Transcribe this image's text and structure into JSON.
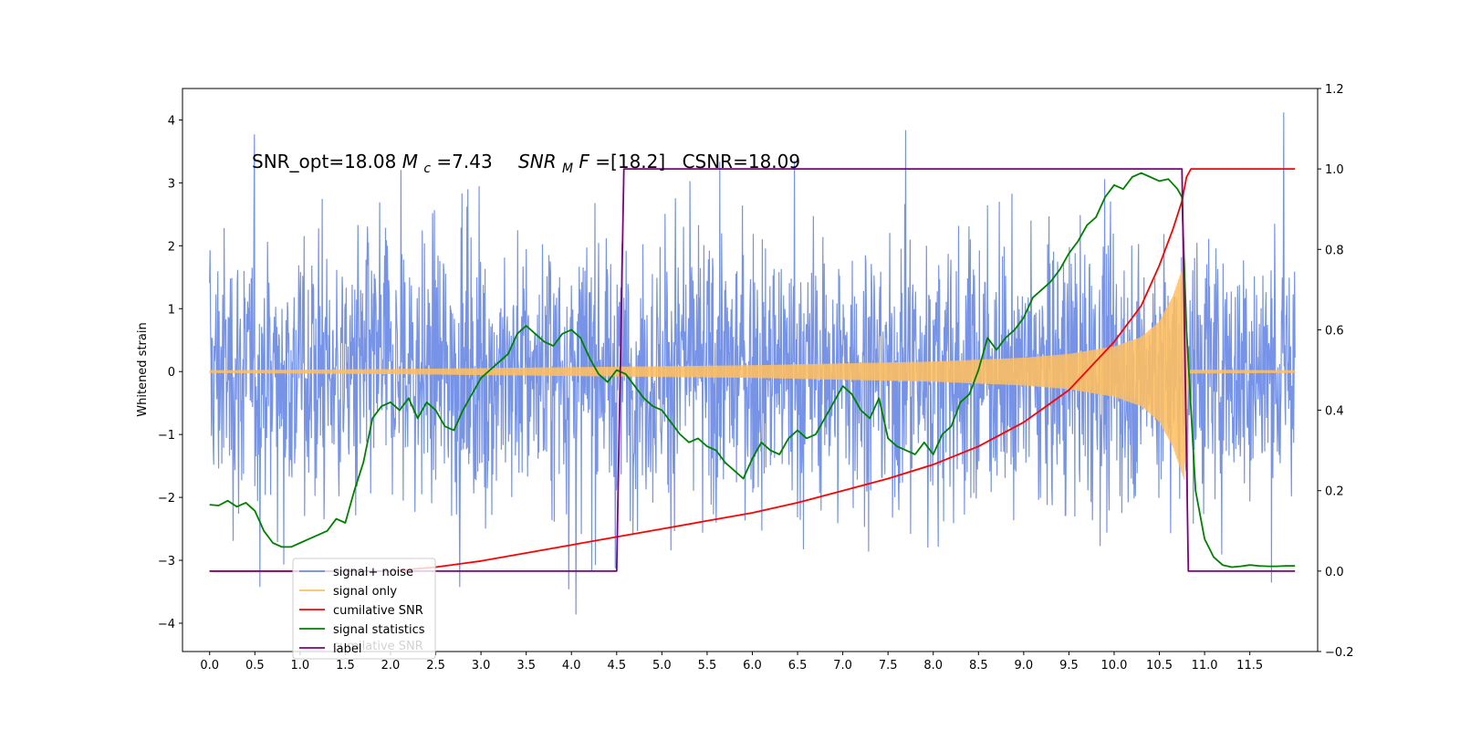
{
  "chart_data": {
    "type": "line",
    "annotation": {
      "prefix": "SNR_opt=18.08 ",
      "mc_symbol": "M",
      "mc_sub": "c",
      "mc_value": "=7.43",
      "snr_symbol": "SNR",
      "snr_sub": "M",
      "snr_italic": "F",
      "snr_value": "=[18.2]",
      "csnr": "CSNR=18.09"
    },
    "ylabel_left": "Whitened strain",
    "x_ticks": [
      "0.0",
      "0.5",
      "1.0",
      "1.5",
      "2.0",
      "2.5",
      "3.0",
      "3.5",
      "4.0",
      "4.5",
      "5.0",
      "5.5",
      "6.0",
      "6.5",
      "7.0",
      "7.5",
      "8.0",
      "8.5",
      "9.0",
      "9.5",
      "10.0",
      "10.5",
      "11.0",
      "11.5"
    ],
    "y_ticks_left": [
      "−4",
      "−3",
      "−2",
      "−1",
      "0",
      "1",
      "2",
      "3",
      "4"
    ],
    "y_ticks_right": [
      "−0.2",
      "0.0",
      "0.2",
      "0.4",
      "0.6",
      "0.8",
      "1.0",
      "1.2"
    ],
    "xlim": [
      -0.3,
      12.25
    ],
    "ylim_left": [
      -4.45,
      4.5
    ],
    "ylim_right": [
      -0.2,
      1.2
    ],
    "grid": false,
    "legend": {
      "location": "lower-left",
      "entries": [
        {
          "label": "signal+ noise",
          "color": "#6f8de6"
        },
        {
          "label": "signal only",
          "color": "#ffbf60"
        },
        {
          "label": "cumilative SNR",
          "color": "#ff0000"
        },
        {
          "label": "signal statistics",
          "color": "#008000"
        },
        {
          "label": "label",
          "color": "#800080"
        }
      ],
      "ghost_text": "cumilative SNR"
    },
    "series": [
      {
        "name": "signal+ noise",
        "axis": "left",
        "color": "#6f8de6",
        "x_range": [
          0.0,
          12.0
        ],
        "style": "noise",
        "typical_band": [
          -2.2,
          2.2
        ],
        "extremes": [
          -4.05,
          4.12
        ]
      },
      {
        "name": "signal only",
        "axis": "left",
        "color": "#ffbf60",
        "style": "chirp",
        "envelope": {
          "x": [
            0.0,
            2.0,
            4.0,
            6.0,
            8.0,
            9.0,
            9.5,
            10.0,
            10.3,
            10.5,
            10.65,
            10.78,
            10.82,
            12.0
          ],
          "amp": [
            0.02,
            0.04,
            0.07,
            0.1,
            0.16,
            0.22,
            0.28,
            0.4,
            0.55,
            0.8,
            1.2,
            1.75,
            0.03,
            0.02
          ]
        }
      },
      {
        "name": "cumilative SNR",
        "axis": "right",
        "color": "#ff0000",
        "x": [
          0.0,
          0.5,
          1.0,
          1.5,
          2.0,
          2.5,
          3.0,
          3.5,
          4.0,
          4.5,
          5.0,
          5.5,
          6.0,
          6.5,
          7.0,
          7.5,
          8.0,
          8.5,
          9.0,
          9.5,
          10.0,
          10.3,
          10.5,
          10.65,
          10.75,
          10.8,
          10.85,
          12.0
        ],
        "values": [
          0.0,
          0.0,
          0.0,
          0.0,
          0.0,
          0.01,
          0.025,
          0.045,
          0.065,
          0.085,
          0.105,
          0.125,
          0.145,
          0.17,
          0.2,
          0.23,
          0.265,
          0.31,
          0.37,
          0.45,
          0.57,
          0.66,
          0.76,
          0.85,
          0.92,
          0.98,
          1.0,
          1.0
        ]
      },
      {
        "name": "signal statistics",
        "axis": "right",
        "color": "#008000",
        "x": [
          0.0,
          0.1,
          0.2,
          0.3,
          0.4,
          0.5,
          0.6,
          0.7,
          0.8,
          0.9,
          1.0,
          1.1,
          1.2,
          1.3,
          1.4,
          1.5,
          1.6,
          1.7,
          1.8,
          1.9,
          2.0,
          2.1,
          2.2,
          2.3,
          2.4,
          2.5,
          2.6,
          2.7,
          2.8,
          2.9,
          3.0,
          3.1,
          3.2,
          3.3,
          3.4,
          3.5,
          3.6,
          3.7,
          3.8,
          3.9,
          4.0,
          4.1,
          4.2,
          4.3,
          4.4,
          4.5,
          4.6,
          4.7,
          4.8,
          4.9,
          5.0,
          5.1,
          5.2,
          5.3,
          5.4,
          5.5,
          5.6,
          5.7,
          5.8,
          5.9,
          6.0,
          6.1,
          6.2,
          6.3,
          6.4,
          6.5,
          6.6,
          6.7,
          6.8,
          6.9,
          7.0,
          7.1,
          7.2,
          7.3,
          7.4,
          7.5,
          7.6,
          7.7,
          7.8,
          7.9,
          8.0,
          8.1,
          8.2,
          8.3,
          8.4,
          8.5,
          8.6,
          8.7,
          8.8,
          8.9,
          9.0,
          9.1,
          9.2,
          9.3,
          9.4,
          9.5,
          9.6,
          9.7,
          9.8,
          9.9,
          10.0,
          10.1,
          10.2,
          10.3,
          10.4,
          10.5,
          10.6,
          10.7,
          10.75,
          10.8,
          10.9,
          11.0,
          11.1,
          11.2,
          11.3,
          11.4,
          11.5,
          11.6,
          11.7,
          11.8,
          11.9,
          12.0
        ],
        "values": [
          0.165,
          0.163,
          0.175,
          0.16,
          0.17,
          0.15,
          0.1,
          0.07,
          0.06,
          0.06,
          0.07,
          0.08,
          0.09,
          0.1,
          0.13,
          0.12,
          0.2,
          0.27,
          0.38,
          0.41,
          0.42,
          0.4,
          0.43,
          0.38,
          0.42,
          0.4,
          0.36,
          0.35,
          0.4,
          0.44,
          0.48,
          0.5,
          0.52,
          0.54,
          0.59,
          0.61,
          0.59,
          0.57,
          0.56,
          0.59,
          0.6,
          0.58,
          0.53,
          0.49,
          0.47,
          0.5,
          0.49,
          0.46,
          0.43,
          0.41,
          0.4,
          0.37,
          0.34,
          0.32,
          0.33,
          0.31,
          0.3,
          0.27,
          0.25,
          0.23,
          0.28,
          0.32,
          0.3,
          0.29,
          0.33,
          0.35,
          0.33,
          0.34,
          0.38,
          0.42,
          0.46,
          0.44,
          0.4,
          0.38,
          0.43,
          0.33,
          0.31,
          0.3,
          0.29,
          0.32,
          0.29,
          0.34,
          0.36,
          0.42,
          0.44,
          0.5,
          0.58,
          0.55,
          0.58,
          0.6,
          0.63,
          0.68,
          0.7,
          0.72,
          0.75,
          0.79,
          0.82,
          0.86,
          0.88,
          0.93,
          0.96,
          0.95,
          0.98,
          0.99,
          0.98,
          0.97,
          0.975,
          0.95,
          0.93,
          0.6,
          0.2,
          0.08,
          0.035,
          0.015,
          0.01,
          0.012,
          0.015,
          0.013,
          0.012,
          0.012,
          0.013,
          0.013
        ]
      },
      {
        "name": "label",
        "axis": "right",
        "color": "#800080",
        "x": [
          0.0,
          4.5,
          4.58,
          10.75,
          10.82,
          12.0
        ],
        "values": [
          0.0,
          0.0,
          1.0,
          1.0,
          0.0,
          0.0
        ]
      }
    ]
  }
}
